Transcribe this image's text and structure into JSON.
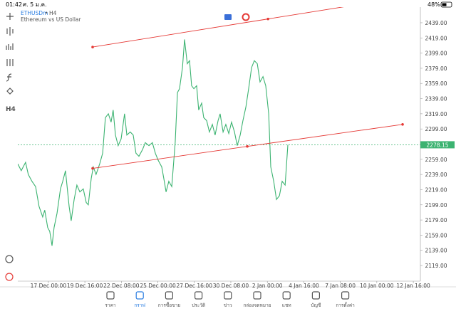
{
  "status_bar": {
    "time": "01:42",
    "date": "ศ. 5 ม.ค.",
    "battery": "48%"
  },
  "toolbar": {
    "timeframe": "H4"
  },
  "chart_data": {
    "type": "line",
    "symbol": "ETHUSDm",
    "timeframe": "H4",
    "description": "Ethereum vs US Dollar",
    "series": [
      {
        "color": "#3cb371",
        "x": [
          -13.4,
          -11.9,
          -10,
          -8.8,
          -7.2,
          -5.6,
          -4.1,
          -2.5,
          -1.6,
          -0.3,
          0.6,
          1.6,
          2.5,
          3.8,
          5.3,
          6.3,
          7.5,
          9.1,
          10,
          11.3,
          12.5,
          13.8,
          15.3,
          16.6,
          17.5,
          18.8,
          19.7,
          20.9,
          22.5,
          23.8,
          25,
          26.3,
          27.5,
          28.4,
          29.4,
          30.6,
          31.9,
          33.4,
          34.4,
          35.9,
          37.2,
          38.4,
          39.7,
          41.3,
          42.5,
          44.1,
          45.6,
          46.9,
          48.1,
          49.7,
          50.6,
          51.6,
          52.8,
          54.1,
          55.6,
          56.6,
          57.5,
          58.8,
          59.7,
          60.9,
          61.9,
          62.8,
          63.8,
          65,
          65.9,
          67.2,
          68.1,
          69.4,
          70.6,
          71.9,
          73.1,
          74.4,
          75.3,
          76.6,
          77.8,
          79.1,
          80.3,
          81.6,
          82.8,
          84.1,
          85.3,
          86.6,
          87.8,
          89.1,
          90.3,
          91.6,
          92.8,
          94.1,
          95.3,
          96.6,
          97.5,
          98.8,
          100,
          101.3,
          102.5,
          103.8,
          105
        ],
        "values": [
          2253,
          2244,
          2255,
          2239,
          2230,
          2223,
          2197,
          2183,
          2192,
          2169,
          2164,
          2145,
          2169,
          2188,
          2220,
          2230,
          2244,
          2197,
          2178,
          2206,
          2225,
          2216,
          2220,
          2202,
          2199,
          2234,
          2249,
          2239,
          2253,
          2267,
          2314,
          2319,
          2308,
          2324,
          2291,
          2277,
          2286,
          2319,
          2291,
          2295,
          2291,
          2267,
          2263,
          2272,
          2281,
          2277,
          2281,
          2267,
          2258,
          2249,
          2234,
          2216,
          2230,
          2223,
          2281,
          2347,
          2352,
          2380,
          2417,
          2385,
          2389,
          2356,
          2352,
          2356,
          2324,
          2333,
          2314,
          2310,
          2295,
          2305,
          2291,
          2310,
          2319,
          2295,
          2305,
          2293,
          2308,
          2295,
          2277,
          2291,
          2310,
          2328,
          2352,
          2380,
          2389,
          2385,
          2361,
          2368,
          2356,
          2319,
          2249,
          2230,
          2206,
          2211,
          2230,
          2225,
          2278.15
        ]
      }
    ],
    "current_price": 2278.15,
    "current_price_color": "#3cb371",
    "trendlines": [
      {
        "color": "#e53935",
        "x": [
          19.4,
          96.3
        ],
        "values": [
          2407,
          2444
        ],
        "ray": true
      },
      {
        "color": "#e53935",
        "x": [
          19.4,
          87.2,
          155.3
        ],
        "values": [
          2247,
          2276,
          2305
        ],
        "ray": false
      }
    ],
    "xlim": [
      -13.4,
      163.1
    ],
    "xticks": [
      {
        "value": 0,
        "label": "17 Dec 00:00"
      },
      {
        "value": 16,
        "label": "19 Dec 16:00"
      },
      {
        "value": 32,
        "label": "22 Dec 08:00"
      },
      {
        "value": 48,
        "label": "25 Dec 00:00"
      },
      {
        "value": 64,
        "label": "27 Dec 16:00"
      },
      {
        "value": 80,
        "label": "30 Dec 08:00"
      },
      {
        "value": 96,
        "label": "2 Jan 00:00"
      },
      {
        "value": 112,
        "label": "4 Jan 16:00"
      },
      {
        "value": 128,
        "label": "7 Jan 08:00"
      },
      {
        "value": 144,
        "label": "10 Jan 00:00"
      },
      {
        "value": 160,
        "label": "12 Jan 16:00"
      }
    ],
    "ylim": [
      2098.4,
      2459.6
    ],
    "yticks": [
      {
        "value": 2439,
        "label": "2439.00"
      },
      {
        "value": 2419,
        "label": "2419.00"
      },
      {
        "value": 2399,
        "label": "2399.00"
      },
      {
        "value": 2379,
        "label": "2379.00"
      },
      {
        "value": 2359,
        "label": "2359.00"
      },
      {
        "value": 2339,
        "label": "2339.00"
      },
      {
        "value": 2319,
        "label": "2319.00"
      },
      {
        "value": 2299,
        "label": "2299.00"
      },
      {
        "value": 2259,
        "label": "2259.00"
      },
      {
        "value": 2239,
        "label": "2239.00"
      },
      {
        "value": 2219,
        "label": "2219.00"
      },
      {
        "value": 2199,
        "label": "2199.00"
      },
      {
        "value": 2179,
        "label": "2179.00"
      },
      {
        "value": 2159,
        "label": "2159.00"
      },
      {
        "value": 2139,
        "label": "2139.00"
      },
      {
        "value": 2119,
        "label": "2119.00"
      }
    ],
    "grid": false
  },
  "nav": {
    "items": [
      "ราคา",
      "กราฟ",
      "การซื้อขาย",
      "ประวัติ",
      "ข่าว",
      "กล่องจดหมาย",
      "แชท",
      "บัญชี",
      "การตั้งค่า"
    ],
    "active": 1,
    "active_color": "#2a7de1"
  }
}
